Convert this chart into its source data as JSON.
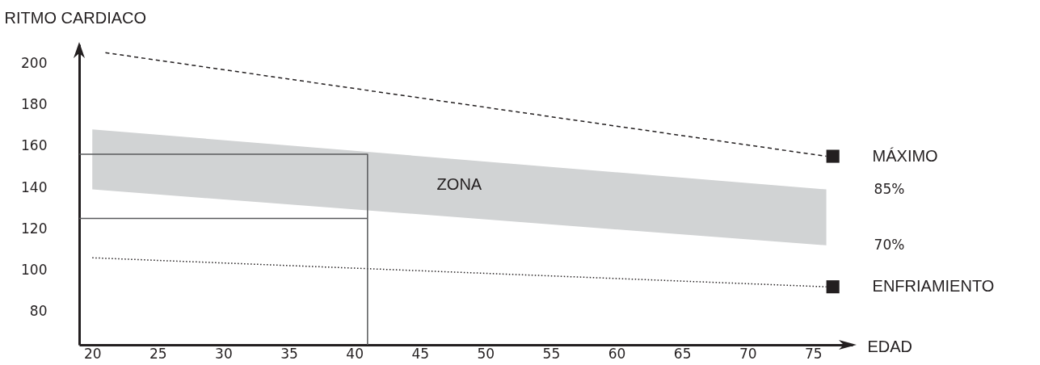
{
  "chart_data": {
    "type": "line",
    "xlabel": "EDAD",
    "ylabel": "RITMO CARDIACO",
    "xlim": [
      19,
      78
    ],
    "ylim": [
      64,
      209
    ],
    "xticks": [
      20,
      25,
      30,
      35,
      40,
      45,
      50,
      55,
      60,
      65,
      70,
      75
    ],
    "yticks": [
      80,
      100,
      120,
      140,
      160,
      180,
      200
    ],
    "grid": false,
    "series": [
      {
        "color": "#d1d3d4",
        "x": [
          20,
          76
        ],
        "values": [
          null,
          null
        ],
        "upper": [
          168,
          139
        ],
        "lower": [
          139,
          112
        ]
      },
      {
        "name": "MÁXIMO",
        "line_style": "dashed",
        "color": "#231f20",
        "x": [
          21,
          76
        ],
        "values": [
          205,
          155
        ]
      },
      {
        "name": "ENFRIAMIENTO",
        "line_style": "dotted",
        "color": "#231f20",
        "x": [
          20,
          76
        ],
        "values": [
          106,
          92
        ]
      },
      {
        "line_style": "solid",
        "color": "#58595b",
        "x": [
          19,
          41,
          41
        ],
        "values": [
          156,
          156,
          64
        ]
      },
      {
        "line_style": "solid",
        "color": "#58595b",
        "x": [
          19,
          41
        ],
        "values": [
          125,
          125
        ]
      },
      {
        "type": "scatter",
        "marker": "square",
        "color": "#231f20",
        "x": [
          76.5
        ],
        "values": [
          155
        ]
      },
      {
        "type": "scatter",
        "marker": "square",
        "color": "#231f20",
        "x": [
          76.5
        ],
        "values": [
          92
        ]
      }
    ],
    "annotations": [
      "ZONA",
      "85%",
      "70%"
    ]
  }
}
